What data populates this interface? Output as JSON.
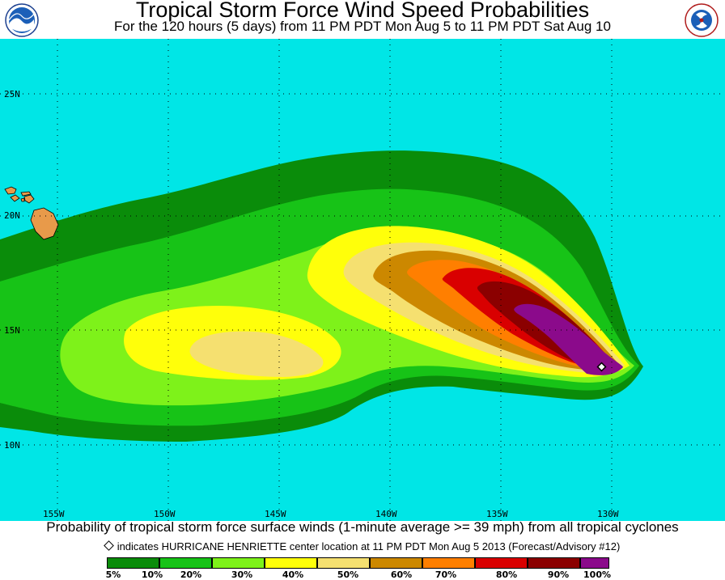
{
  "header": {
    "title": "Tropical Storm Force Wind Speed Probabilities",
    "subtitle": "For the 120 hours (5 days) from 11 PM PDT Mon Aug 5 to 11 PM PDT Sat Aug 10",
    "left_logo": "NOAA",
    "right_logo": "National Weather Service"
  },
  "map": {
    "ocean_color": "#00e6e6",
    "land_color": "#e89a4a",
    "lat_labels": [
      "25N",
      "20N",
      "15N",
      "10N"
    ],
    "lon_labels": [
      "155W",
      "150W",
      "145W",
      "140W",
      "135W",
      "130W"
    ],
    "storm_marker": "storm-center-diamond"
  },
  "footer": {
    "caption": "Probability of tropical storm force surface winds (1-minute average >= 39 mph) from all tropical cyclones",
    "note": "indicates HURRICANE HENRIETTE center location at 11 PM PDT Mon Aug 5 2013 (Forecast/Advisory #12)"
  },
  "legend": {
    "colors": [
      "#0a8c0a",
      "#17c317",
      "#7ef21a",
      "#ffff0a",
      "#f5e070",
      "#cc8800",
      "#ff7f00",
      "#d90000",
      "#8b0000",
      "#8b0a8b"
    ],
    "labels": [
      "5%",
      "10%",
      "20%",
      "30%",
      "40%",
      "50%",
      "60%",
      "70%",
      "80%",
      "90%",
      "100%"
    ]
  }
}
